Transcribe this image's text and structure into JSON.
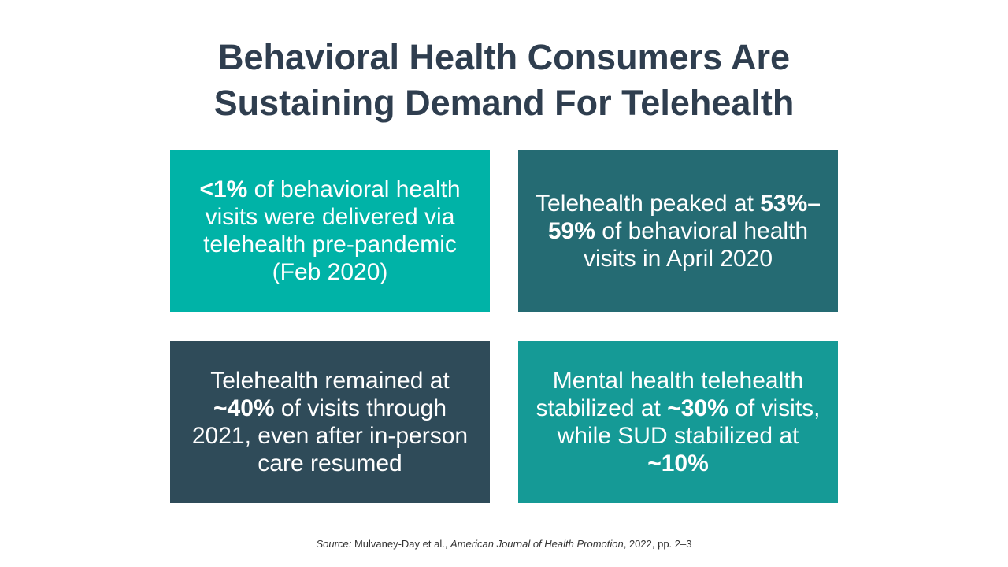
{
  "title": {
    "line1": "Behavioral Health Consumers Are",
    "line2": "Sustaining Demand For Telehealth"
  },
  "colors": {
    "title": "#2f3e4f",
    "card1": "#00b3a7",
    "card2": "#256b73",
    "card3": "#2f4b59",
    "card4": "#159a96"
  },
  "cards": [
    {
      "stat": "<1%",
      "text": " of behavioral health visits were delivered via telehealth pre-pandemic (Feb 2020)"
    },
    {
      "pre": "Telehealth peaked at ",
      "stat": "53%–59%",
      "text": " of behavioral health visits in April 2020"
    },
    {
      "pre": "Telehealth remained at ",
      "stat": "~40%",
      "text": " of visits through 2021, even after in-person care resumed"
    },
    {
      "pre": "Mental health telehealth stabilized at ",
      "stat": "~30%",
      "mid": " of visits, while SUD stabilized at ",
      "stat2": "~10%"
    }
  ],
  "source": {
    "label": "Source:",
    "authors": " Mulvaney-Day et al., ",
    "journal": "American Journal of Health Promotion",
    "details": ", 2022, pp. 2–3"
  }
}
